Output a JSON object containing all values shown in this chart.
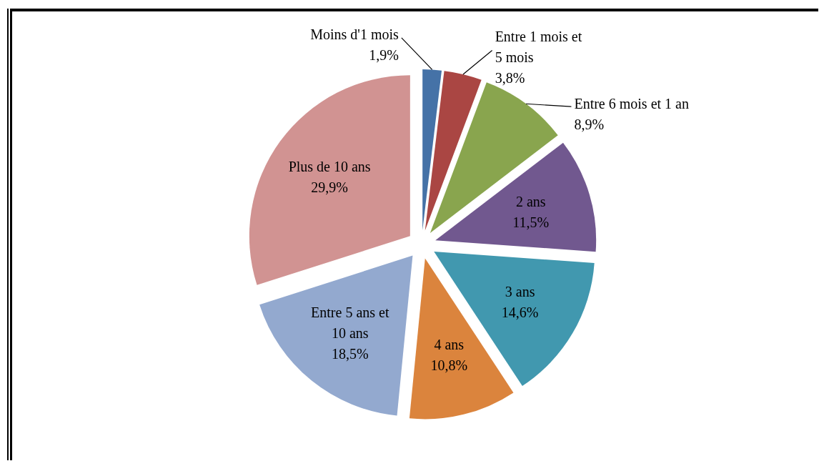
{
  "chart_data": {
    "type": "pie",
    "categories": [
      "Moins d'1 mois",
      "Entre 1 mois et 5 mois",
      "Entre 6 mois et 1 an",
      "2 ans",
      "3 ans",
      "4 ans",
      "Entre 5 ans et 10 ans",
      "Plus de 10 ans"
    ],
    "values": [
      1.9,
      3.8,
      8.9,
      11.5,
      14.6,
      10.8,
      18.5,
      29.9
    ],
    "colors": [
      "#4572a7",
      "#aa4643",
      "#89a54e",
      "#71588f",
      "#4198af",
      "#db843d",
      "#93a9cf",
      "#d19392"
    ],
    "value_labels": [
      "1,9%",
      "3,8%",
      "8,9%",
      "11,5%",
      "14,6%",
      "10,8%",
      "18,5%",
      "29,9%"
    ]
  }
}
